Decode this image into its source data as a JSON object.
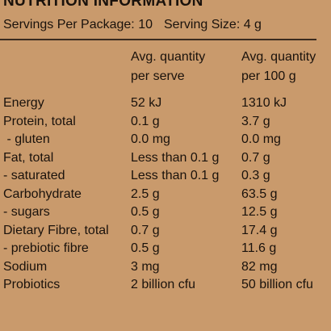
{
  "title": "NUTRITION INFORMATION",
  "servings_per_package": "Servings Per Package: 10",
  "serving_size": "Serving Size: 4 g",
  "columns": {
    "per_serve": [
      "Avg. quantity",
      "per serve"
    ],
    "per_100g": [
      "Avg. quantity",
      "per 100 g"
    ]
  },
  "rows": [
    {
      "name": "Energy",
      "per_serve": "52 kJ",
      "per_100g": "1310 kJ"
    },
    {
      "name": "Protein, total",
      "per_serve": "0.1 g",
      "per_100g": "3.7 g"
    },
    {
      "name": " - gluten",
      "per_serve": "0.0 mg",
      "per_100g": "0.0 mg"
    },
    {
      "name": "Fat, total",
      "per_serve": "Less than 0.1 g",
      "per_100g": "0.7 g"
    },
    {
      "name": "- saturated",
      "per_serve": "Less than 0.1 g",
      "per_100g": "0.3 g"
    },
    {
      "name": "Carbohydrate",
      "per_serve": "2.5 g",
      "per_100g": "63.5 g"
    },
    {
      "name": "- sugars",
      "per_serve": "0.5 g",
      "per_100g": "12.5 g"
    },
    {
      "name": "Dietary Fibre, total",
      "per_serve": "0.7 g",
      "per_100g": "17.4 g"
    },
    {
      "name": "- prebiotic fibre",
      "per_serve": "0.5 g",
      "per_100g": "11.6 g"
    },
    {
      "name": "Sodium",
      "per_serve": "3 mg",
      "per_100g": "82 mg"
    },
    {
      "name": "Probiotics",
      "per_serve": "2 billion cfu",
      "per_100g": "50 billion cfu"
    }
  ]
}
